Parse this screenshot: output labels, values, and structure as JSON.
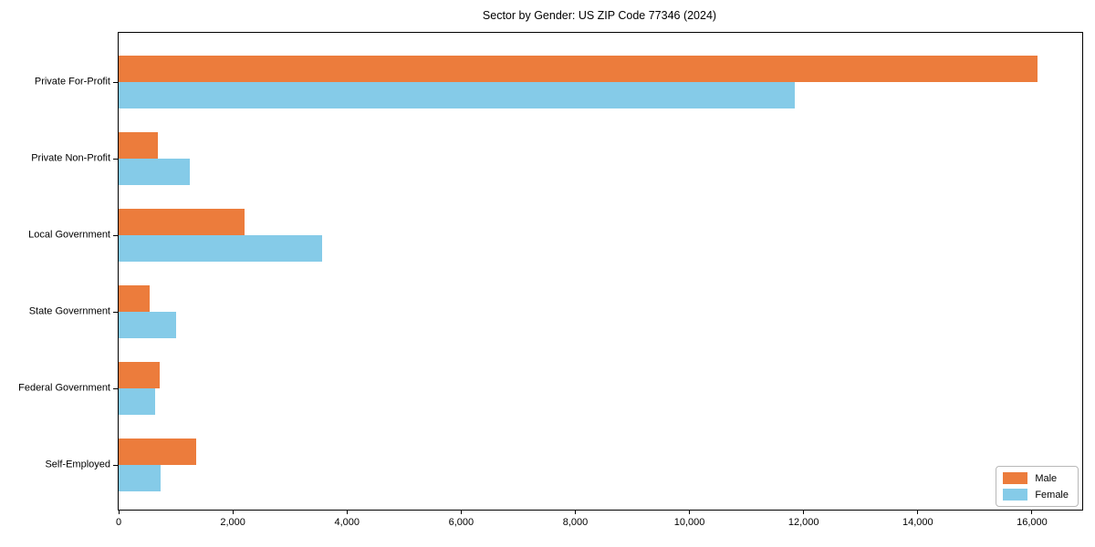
{
  "figure": {
    "title": "Sector by Gender: US ZIP Code 77346 (2024)"
  },
  "chart_data": {
    "type": "bar",
    "orientation": "horizontal",
    "title": "Sector by Gender: US ZIP Code 77346 (2024)",
    "categories": [
      "Private For-Profit",
      "Private Non-Profit",
      "Local Government",
      "State Government",
      "Federal Government",
      "Self-Employed"
    ],
    "series": [
      {
        "name": "Male",
        "color": "#ec7c3c",
        "values": [
          16100,
          690,
          2210,
          540,
          715,
          1355
        ]
      },
      {
        "name": "Female",
        "color": "#85cbe8",
        "values": [
          11840,
          1250,
          3560,
          1000,
          640,
          730
        ]
      }
    ],
    "xlabel": "",
    "ylabel": "",
    "xlim": [
      0,
      16880
    ],
    "x_tick_values": [
      0,
      2000,
      4000,
      6000,
      8000,
      10000,
      12000,
      14000,
      16000
    ],
    "x_tick_labels": [
      "0",
      "2,000",
      "4,000",
      "6,000",
      "8,000",
      "10,000",
      "12,000",
      "14,000",
      "16,000"
    ],
    "grid": false,
    "legend_position": "lower right",
    "group_layout": "Male bar drawn above Female bar within each category group"
  }
}
